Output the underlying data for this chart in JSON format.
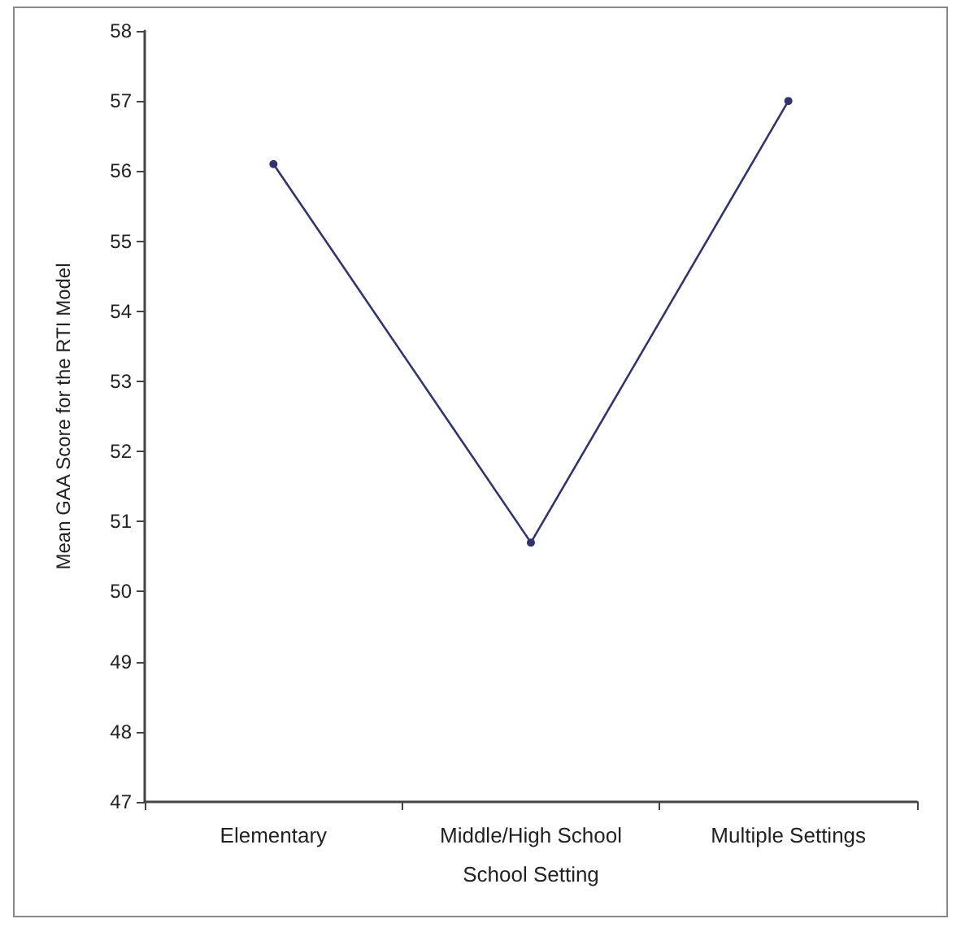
{
  "chart_data": {
    "type": "line",
    "xlabel": "School Setting",
    "ylabel": "Mean GAA Score for the RTI Model",
    "categories": [
      "Elementary",
      "Middle/High School",
      "Multiple Settings"
    ],
    "series": [
      {
        "color": "#33336e",
        "values": [
          56.1,
          50.7,
          57.0
        ]
      }
    ],
    "ylim": [
      47,
      58
    ],
    "yticks": [
      47,
      48,
      49,
      50,
      51,
      52,
      53,
      54,
      55,
      56,
      57,
      58
    ],
    "grid": false,
    "marker": "circle",
    "line_style": "solid"
  }
}
